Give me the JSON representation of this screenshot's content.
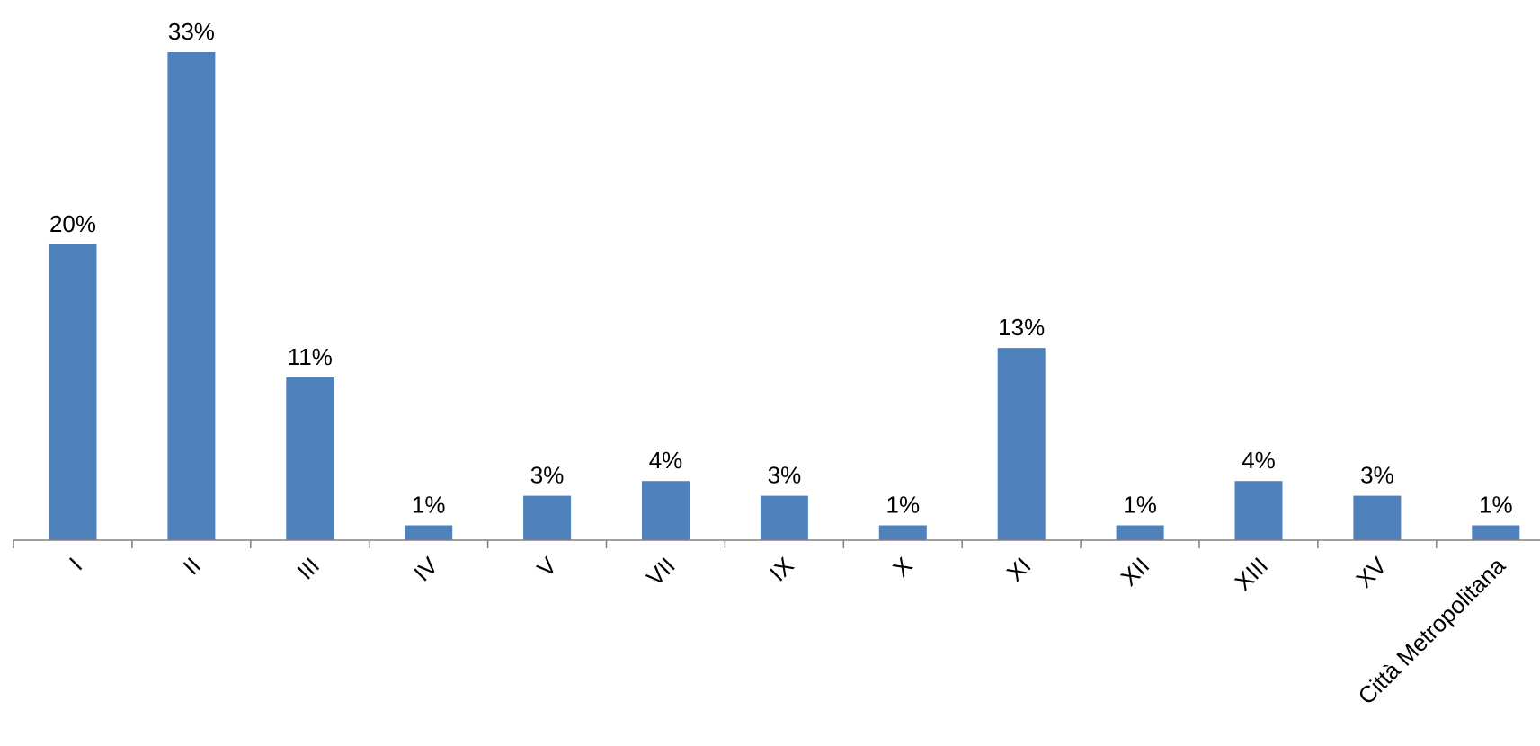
{
  "chart_data": {
    "type": "bar",
    "categories": [
      "I",
      "II",
      "III",
      "IV",
      "V",
      "VII",
      "IX",
      "X",
      "XI",
      "XII",
      "XIII",
      "XV",
      "Città Metropolitana"
    ],
    "values": [
      20,
      33,
      11,
      1,
      3,
      4,
      3,
      1,
      13,
      1,
      4,
      3,
      1
    ],
    "data_labels": [
      "20%",
      "33%",
      "11%",
      "1%",
      "3%",
      "4%",
      "3%",
      "1%",
      "13%",
      "1%",
      "4%",
      "3%",
      "1%"
    ],
    "title": "",
    "xlabel": "",
    "ylabel": "",
    "ylim": [
      0,
      33
    ],
    "grid": false,
    "legend": "none",
    "bar_color": "#4F81BD",
    "axis_color": "#808080"
  }
}
